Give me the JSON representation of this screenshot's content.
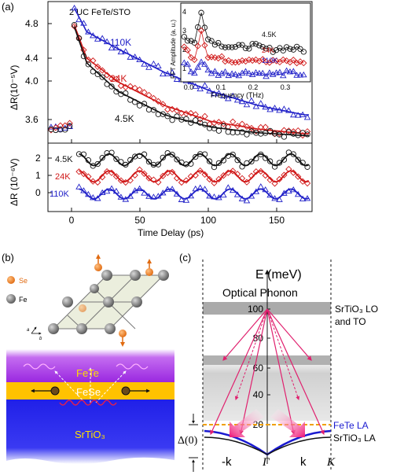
{
  "panel_a": {
    "label": "(a)",
    "sample": "2 UC FeTe/STO",
    "ylabel_top": "ΔR(10⁻⁵V)",
    "ylabel_bottom": "ΔR (10⁻⁶V)",
    "xlabel": "Time Delay (ps)",
    "yticks_top": [
      "3.6",
      "4.0",
      "4.4",
      "4.8"
    ],
    "yticks_bottom": [
      "0",
      "1",
      "2"
    ],
    "xticks": [
      "0",
      "50",
      "100",
      "150"
    ],
    "temp_labels_top": [
      {
        "text": "110K",
        "color": "#2020c8"
      },
      {
        "text": "24K",
        "color": "#d01818"
      },
      {
        "text": "4.5K",
        "color": "#111111"
      }
    ],
    "temp_labels_bottom": [
      {
        "text": "4.5K",
        "color": "#111111"
      },
      {
        "text": "24K",
        "color": "#d01818"
      },
      {
        "text": "110K",
        "color": "#2020c8"
      }
    ],
    "inset": {
      "ylabel": "FFT Amplitude (a. u.)",
      "xlabel": "Frequency (THz)",
      "yticks": [
        "1",
        "2",
        "3",
        "4"
      ],
      "xticks": [
        "0.0",
        "0.1",
        "0.2",
        "0.3"
      ],
      "labels": [
        {
          "text": "4.5K",
          "color": "#111111"
        },
        {
          "text": "24K",
          "color": "#d01818"
        },
        {
          "text": "110K",
          "color": "#2020c8"
        }
      ]
    }
  },
  "panel_b": {
    "label": "(b)",
    "legend_se": "Se",
    "legend_fe": "Fe",
    "axis_a": "a",
    "axis_b": "b",
    "layers": [
      "FeTe",
      "FeSe",
      "SrTiO₃"
    ]
  },
  "panel_c": {
    "label": "(c)",
    "y_axis_label": "E (meV)",
    "optical_phonon": "Optical Phonon",
    "yticks": [
      "20",
      "40",
      "60",
      "80",
      "100"
    ],
    "band_label_1": "SrTiO₃ LO",
    "band_label_2": "and TO",
    "fete_la": "FeTe LA",
    "sto_la": "SrTiO₃ LA",
    "delta": "Δ(0)",
    "k_labels": [
      "-k",
      "Γ",
      "k",
      "K"
    ]
  },
  "chart_data": [
    {
      "type": "line",
      "title": "",
      "ylabel": "ΔR(10⁻⁵V)",
      "xlabel": "Time Delay (ps)",
      "xlim": [
        -15,
        155
      ],
      "ylim": [
        3.45,
        4.95
      ],
      "series": [
        {
          "name": "110K",
          "color": "#2020c8",
          "baseline": 3.6,
          "peak": 4.88,
          "x": [
            -10,
            0,
            2,
            10,
            30,
            60,
            90,
            120,
            150
          ],
          "y": [
            3.62,
            3.63,
            4.88,
            4.63,
            4.45,
            4.2,
            4.0,
            3.85,
            3.75
          ]
        },
        {
          "name": "24K",
          "color": "#d01818",
          "baseline": 3.6,
          "peak": 4.7,
          "x": [
            -10,
            0,
            2,
            10,
            30,
            60,
            90,
            120,
            150
          ],
          "y": [
            3.62,
            3.63,
            4.7,
            4.35,
            4.1,
            3.85,
            3.68,
            3.6,
            3.55
          ]
        },
        {
          "name": "4.5K",
          "color": "#111111",
          "baseline": 3.6,
          "peak": 4.68,
          "x": [
            -10,
            0,
            2,
            10,
            30,
            60,
            90,
            120,
            150
          ],
          "y": [
            3.62,
            3.63,
            4.68,
            4.3,
            4.0,
            3.75,
            3.62,
            3.56,
            3.53
          ]
        }
      ]
    },
    {
      "type": "line",
      "title": "",
      "ylabel": "ΔR (10⁻⁶V)",
      "xlabel": "Time Delay (ps)",
      "xlim": [
        -15,
        155
      ],
      "ylim": [
        -0.8,
        2.7
      ],
      "series": [
        {
          "name": "4.5K",
          "color": "#111111",
          "offset": 1.85,
          "amplitude": 0.3,
          "period_ps": 19.5
        },
        {
          "name": "24K",
          "color": "#d01818",
          "offset": 1.0,
          "amplitude": 0.28,
          "period_ps": 19.5
        },
        {
          "name": "110K",
          "color": "#2020c8",
          "offset": 0.1,
          "amplitude": 0.25,
          "period_ps": 19.5
        }
      ]
    },
    {
      "type": "line",
      "title": "",
      "ylabel": "FFT Amplitude (a. u.)",
      "xlabel": "Frequency (THz)",
      "xlim": [
        -0.01,
        0.37
      ],
      "ylim": [
        0.5,
        4.2
      ],
      "series": [
        {
          "name": "4.5K",
          "color": "#111111",
          "x": [
            0.0,
            0.03,
            0.05,
            0.07,
            0.1,
            0.15,
            0.2,
            0.25,
            0.3,
            0.35
          ],
          "y": [
            2.6,
            2.3,
            3.85,
            2.5,
            2.3,
            2.1,
            2.2,
            2.0,
            2.1,
            2.0
          ]
        },
        {
          "name": "24K",
          "color": "#d01818",
          "x": [
            0.0,
            0.03,
            0.05,
            0.07,
            0.1,
            0.15,
            0.2,
            0.25,
            0.3,
            0.35
          ],
          "y": [
            2.1,
            1.6,
            2.95,
            1.7,
            1.6,
            1.5,
            1.6,
            1.4,
            1.5,
            1.4
          ]
        },
        {
          "name": "110K",
          "color": "#2020c8",
          "x": [
            0.0,
            0.03,
            0.05,
            0.07,
            0.1,
            0.15,
            0.2,
            0.25,
            0.3,
            0.35
          ],
          "y": [
            1.4,
            0.9,
            1.5,
            1.0,
            0.9,
            0.9,
            0.95,
            0.85,
            0.9,
            0.85
          ]
        }
      ]
    }
  ]
}
